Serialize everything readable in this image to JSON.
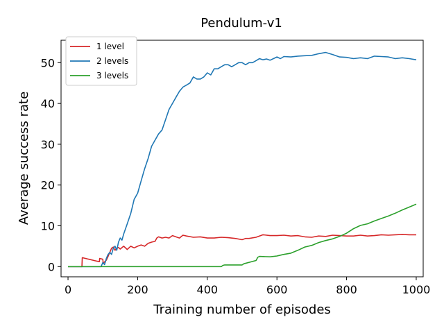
{
  "chart_data": {
    "type": "line",
    "title": "Pendulum-v1",
    "xlabel": "Training number of episodes",
    "ylabel": "Average success rate",
    "xlim": [
      -20,
      1020
    ],
    "ylim": [
      -2.5,
      55.5
    ],
    "xticks": [
      0,
      200,
      400,
      600,
      800,
      1000
    ],
    "yticks": [
      0,
      10,
      20,
      30,
      40,
      50
    ],
    "grid": false,
    "legend_position": "top-left",
    "series": [
      {
        "name": "1 level",
        "color": "#d62728",
        "x": [
          0,
          40,
          41,
          60,
          80,
          90,
          91,
          100,
          101,
          110,
          115,
          120,
          125,
          130,
          135,
          140,
          145,
          150,
          160,
          170,
          180,
          190,
          200,
          210,
          220,
          230,
          240,
          250,
          255,
          260,
          270,
          280,
          290,
          300,
          310,
          320,
          330,
          340,
          360,
          380,
          400,
          420,
          440,
          460,
          480,
          500,
          510,
          520,
          540,
          560,
          580,
          600,
          620,
          640,
          660,
          680,
          700,
          720,
          740,
          760,
          780,
          800,
          820,
          840,
          860,
          880,
          900,
          920,
          940,
          960,
          980,
          1000
        ],
        "y": [
          0,
          0,
          2.2,
          1.8,
          1.4,
          1.2,
          2.0,
          1.8,
          0.8,
          1.6,
          2.5,
          3.5,
          4.5,
          4.8,
          4.0,
          4.5,
          4.7,
          4.3,
          5.0,
          4.2,
          5.0,
          4.6,
          5.0,
          5.3,
          5.0,
          5.7,
          6.0,
          6.2,
          7.0,
          7.3,
          7.0,
          7.2,
          7.0,
          7.6,
          7.3,
          7.0,
          7.7,
          7.5,
          7.2,
          7.3,
          7.0,
          7.0,
          7.2,
          7.1,
          6.9,
          6.6,
          6.9,
          6.9,
          7.2,
          7.8,
          7.6,
          7.6,
          7.7,
          7.5,
          7.6,
          7.3,
          7.2,
          7.5,
          7.4,
          7.7,
          7.6,
          7.5,
          7.5,
          7.7,
          7.5,
          7.6,
          7.8,
          7.7,
          7.8,
          7.9,
          7.8,
          7.8
        ]
      },
      {
        "name": "2 levels",
        "color": "#1f77b4",
        "x": [
          0,
          95,
          100,
          105,
          110,
          115,
          120,
          125,
          130,
          135,
          140,
          145,
          150,
          155,
          160,
          170,
          180,
          190,
          200,
          210,
          220,
          230,
          240,
          250,
          260,
          270,
          280,
          290,
          300,
          310,
          320,
          330,
          340,
          350,
          360,
          370,
          380,
          390,
          400,
          410,
          420,
          430,
          440,
          450,
          460,
          470,
          480,
          490,
          500,
          510,
          520,
          530,
          540,
          550,
          560,
          570,
          580,
          590,
          600,
          610,
          620,
          640,
          660,
          680,
          700,
          720,
          740,
          760,
          780,
          800,
          820,
          840,
          860,
          880,
          900,
          920,
          940,
          960,
          980,
          1000
        ],
        "y": [
          0,
          0,
          1.0,
          0.5,
          2.0,
          3.0,
          3.5,
          3.0,
          4.5,
          5.0,
          4.0,
          6.0,
          7.0,
          6.5,
          8.0,
          10.5,
          13.0,
          16.5,
          18.0,
          21.0,
          24.0,
          26.5,
          29.5,
          31.0,
          32.5,
          33.5,
          36.0,
          38.5,
          40.0,
          41.5,
          43.0,
          44.0,
          44.5,
          45.0,
          46.5,
          46.0,
          46.0,
          46.5,
          47.5,
          47.0,
          48.5,
          48.5,
          49.0,
          49.5,
          49.5,
          49.0,
          49.5,
          50.0,
          50.0,
          49.5,
          50.0,
          50.0,
          50.5,
          51.0,
          50.7,
          50.9,
          50.6,
          51.0,
          51.4,
          51.0,
          51.5,
          51.4,
          51.6,
          51.7,
          51.8,
          52.2,
          52.5,
          52.0,
          51.4,
          51.3,
          51.0,
          51.2,
          51.0,
          51.6,
          51.5,
          51.4,
          51.0,
          51.2,
          51.0,
          50.7
        ]
      },
      {
        "name": "3 levels",
        "color": "#2ca02c",
        "x": [
          0,
          440,
          445,
          450,
          500,
          505,
          540,
          545,
          550,
          580,
          600,
          610,
          620,
          640,
          660,
          680,
          700,
          720,
          740,
          760,
          780,
          800,
          820,
          840,
          860,
          880,
          900,
          920,
          940,
          960,
          980,
          1000
        ],
        "y": [
          0,
          0,
          0.3,
          0.4,
          0.4,
          0.7,
          1.5,
          2.3,
          2.5,
          2.4,
          2.6,
          2.8,
          3.0,
          3.3,
          4.0,
          4.8,
          5.2,
          5.9,
          6.4,
          6.8,
          7.4,
          8.2,
          9.3,
          10.1,
          10.5,
          11.2,
          11.8,
          12.4,
          13.1,
          13.9,
          14.6,
          15.3
        ]
      }
    ]
  }
}
